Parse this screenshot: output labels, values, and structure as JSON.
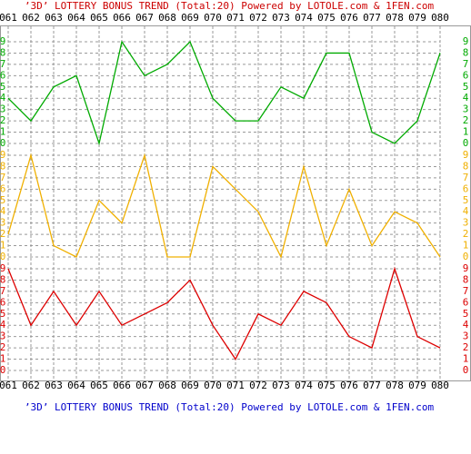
{
  "chart_data": {
    "type": "line",
    "title": "’3D’ LOTTERY BONUS TREND (Total:20)  Powered by LOTOLE.com & 1FEN.com",
    "footer_title": "’3D’ LOTTERY BONUS TREND (Total:20)  Powered by LOTOLE.com & 1FEN.com",
    "title_color": "#cc0000",
    "footer_color": "#0000cc",
    "categories": [
      "061",
      "062",
      "063",
      "064",
      "065",
      "066",
      "067",
      "068",
      "069",
      "070",
      "071",
      "072",
      "073",
      "074",
      "075",
      "076",
      "077",
      "078",
      "079",
      "080"
    ],
    "ylim": [
      0,
      9
    ],
    "yticks": [
      0,
      1,
      2,
      3,
      4,
      5,
      6,
      7,
      8,
      9
    ],
    "grid": true,
    "series": [
      {
        "color": "#00aa00",
        "values": [
          4,
          2,
          5,
          6,
          0,
          9,
          6,
          7,
          9,
          4,
          2,
          2,
          5,
          4,
          8,
          8,
          1,
          0,
          2,
          8
        ]
      },
      {
        "color": "#f0b000",
        "values": [
          2,
          9,
          1,
          0,
          5,
          3,
          9,
          0,
          0,
          8,
          6,
          4,
          0,
          8,
          1,
          6,
          1,
          4,
          3,
          0
        ]
      },
      {
        "color": "#dd0000",
        "values": [
          9,
          4,
          7,
          4,
          7,
          4,
          5,
          6,
          8,
          4,
          1,
          5,
          4,
          7,
          6,
          3,
          2,
          9,
          3,
          2
        ]
      }
    ]
  }
}
